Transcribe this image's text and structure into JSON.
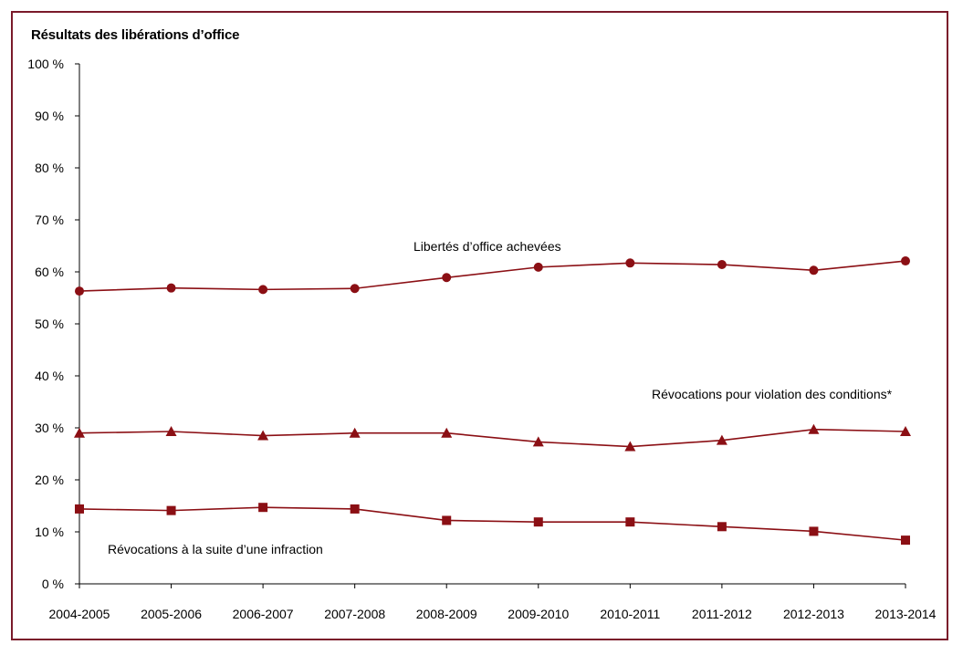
{
  "chart_data": {
    "type": "line",
    "title": "Résultats des libérations d’office",
    "categories": [
      "2004-2005",
      "2005-2006",
      "2006-2007",
      "2007-2008",
      "2008-2009",
      "2009-2010",
      "2010-2011",
      "2011-2012",
      "2012-2013",
      "2013-2014"
    ],
    "ylim": [
      0,
      100
    ],
    "yticks": [
      0,
      10,
      20,
      30,
      40,
      50,
      60,
      70,
      80,
      90,
      100
    ],
    "ytick_suffix": " %",
    "grid": false,
    "colors": {
      "line": "#8b0f14",
      "frame": "#7a1a2a"
    },
    "series": [
      {
        "name": "Libertés d’office achevées",
        "marker": "circle",
        "values": [
          56.3,
          56.9,
          56.6,
          56.8,
          58.9,
          60.9,
          61.7,
          61.4,
          60.3,
          62.1
        ]
      },
      {
        "name": "Révocations pour violation des conditions*",
        "marker": "triangle",
        "values": [
          29.0,
          29.3,
          28.5,
          29.0,
          29.0,
          27.3,
          26.4,
          27.6,
          29.7,
          29.3
        ]
      },
      {
        "name": "Révocations à la suite d’une infraction",
        "marker": "square",
        "values": [
          14.4,
          14.1,
          14.7,
          14.4,
          12.2,
          11.9,
          11.9,
          11.0,
          10.1,
          8.4
        ]
      }
    ]
  }
}
